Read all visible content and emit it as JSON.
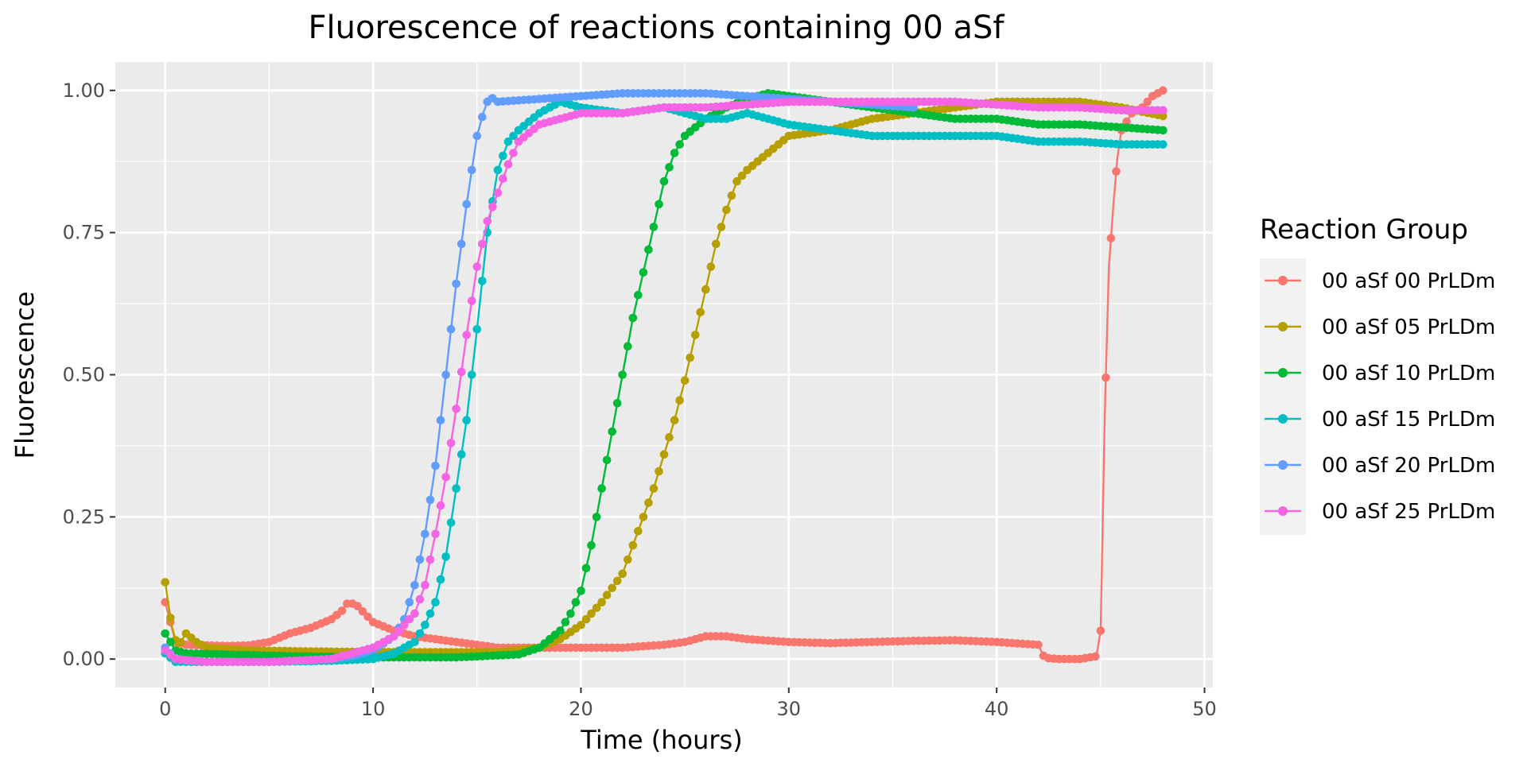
{
  "chart_data": {
    "type": "line",
    "title": "Fluorescence of reactions containing 00 aSf",
    "xlabel": "Time (hours)",
    "ylabel": "Fluorescence",
    "xlim": [
      -2.4,
      50.4
    ],
    "ylim": [
      -0.05,
      1.05
    ],
    "x_ticks": [
      0,
      10,
      20,
      30,
      40,
      50
    ],
    "x_tick_labels": [
      "0",
      "10",
      "20",
      "30",
      "40",
      "50"
    ],
    "y_ticks": [
      0,
      0.25,
      0.5,
      0.75,
      1.0
    ],
    "y_tick_labels": [
      "0.00",
      "0.25",
      "0.50",
      "0.75",
      "1.00"
    ],
    "grid": true,
    "legend": {
      "title": "Reaction Group",
      "position": "right"
    },
    "series": [
      {
        "name": "00 aSf 00 PrLDm",
        "color": "#F8766D",
        "points": [
          [
            0,
            0.1
          ],
          [
            0.5,
            0.03
          ],
          [
            1,
            0.025
          ],
          [
            2,
            0.024
          ],
          [
            3,
            0.023
          ],
          [
            4,
            0.024
          ],
          [
            5,
            0.03
          ],
          [
            6,
            0.045
          ],
          [
            7,
            0.055
          ],
          [
            8,
            0.07
          ],
          [
            8.5,
            0.085
          ],
          [
            8.8,
            0.1
          ],
          [
            9.2,
            0.095
          ],
          [
            10,
            0.065
          ],
          [
            11,
            0.05
          ],
          [
            12,
            0.04
          ],
          [
            13,
            0.035
          ],
          [
            14,
            0.03
          ],
          [
            15,
            0.025
          ],
          [
            16,
            0.02
          ],
          [
            18,
            0.02
          ],
          [
            20,
            0.02
          ],
          [
            22,
            0.02
          ],
          [
            24,
            0.025
          ],
          [
            25,
            0.03
          ],
          [
            26,
            0.04
          ],
          [
            27,
            0.04
          ],
          [
            28,
            0.035
          ],
          [
            30,
            0.03
          ],
          [
            32,
            0.028
          ],
          [
            34,
            0.03
          ],
          [
            36,
            0.032
          ],
          [
            38,
            0.033
          ],
          [
            40,
            0.03
          ],
          [
            42,
            0.025
          ],
          [
            42.3,
            0.002
          ],
          [
            43,
            0.0
          ],
          [
            44,
            0.0
          ],
          [
            44.8,
            0.005
          ],
          [
            45,
            0.05
          ],
          [
            45.2,
            0.43
          ],
          [
            45.4,
            0.69
          ],
          [
            45.6,
            0.79
          ],
          [
            45.8,
            0.88
          ],
          [
            46,
            0.93
          ],
          [
            46.5,
            0.96
          ],
          [
            47,
            0.97
          ],
          [
            47.5,
            0.99
          ],
          [
            48,
            1.0
          ]
        ]
      },
      {
        "name": "00 aSf 05 PrLDm",
        "color": "#B79F00",
        "points": [
          [
            0,
            0.135
          ],
          [
            0.3,
            0.06
          ],
          [
            0.6,
            0.02
          ],
          [
            1,
            0.045
          ],
          [
            1.5,
            0.03
          ],
          [
            2,
            0.02
          ],
          [
            4,
            0.015
          ],
          [
            8,
            0.013
          ],
          [
            12,
            0.012
          ],
          [
            16,
            0.012
          ],
          [
            18,
            0.02
          ],
          [
            19,
            0.035
          ],
          [
            20,
            0.06
          ],
          [
            21,
            0.1
          ],
          [
            22,
            0.15
          ],
          [
            22.5,
            0.2
          ],
          [
            23,
            0.25
          ],
          [
            23.5,
            0.3
          ],
          [
            24,
            0.36
          ],
          [
            24.5,
            0.42
          ],
          [
            25,
            0.49
          ],
          [
            25.5,
            0.57
          ],
          [
            26,
            0.65
          ],
          [
            26.5,
            0.73
          ],
          [
            27,
            0.79
          ],
          [
            27.5,
            0.84
          ],
          [
            28,
            0.86
          ],
          [
            29,
            0.89
          ],
          [
            30,
            0.92
          ],
          [
            32,
            0.93
          ],
          [
            34,
            0.95
          ],
          [
            36,
            0.96
          ],
          [
            38,
            0.97
          ],
          [
            40,
            0.98
          ],
          [
            42,
            0.98
          ],
          [
            44,
            0.98
          ],
          [
            46,
            0.97
          ],
          [
            48,
            0.955
          ]
        ]
      },
      {
        "name": "00 aSf 10 PrLDm",
        "color": "#00BA38",
        "points": [
          [
            0,
            0.045
          ],
          [
            0.5,
            0.015
          ],
          [
            1,
            0.01
          ],
          [
            3,
            0.008
          ],
          [
            6,
            0.005
          ],
          [
            10,
            0.003
          ],
          [
            14,
            0.003
          ],
          [
            17,
            0.008
          ],
          [
            18,
            0.02
          ],
          [
            19,
            0.05
          ],
          [
            19.5,
            0.08
          ],
          [
            20,
            0.12
          ],
          [
            20.5,
            0.2
          ],
          [
            21,
            0.3
          ],
          [
            21.5,
            0.4
          ],
          [
            22,
            0.5
          ],
          [
            22.5,
            0.6
          ],
          [
            23,
            0.68
          ],
          [
            23.5,
            0.76
          ],
          [
            24,
            0.84
          ],
          [
            24.5,
            0.89
          ],
          [
            25,
            0.92
          ],
          [
            26,
            0.95
          ],
          [
            27,
            0.97
          ],
          [
            28,
            0.985
          ],
          [
            29,
            0.995
          ],
          [
            30,
            0.99
          ],
          [
            32,
            0.98
          ],
          [
            34,
            0.97
          ],
          [
            36,
            0.96
          ],
          [
            38,
            0.95
          ],
          [
            40,
            0.95
          ],
          [
            42,
            0.94
          ],
          [
            44,
            0.94
          ],
          [
            46,
            0.935
          ],
          [
            48,
            0.93
          ]
        ]
      },
      {
        "name": "00 aSf 15 PrLDm",
        "color": "#00BFC4",
        "points": [
          [
            0,
            0.01
          ],
          [
            0.5,
            -0.005
          ],
          [
            2,
            -0.005
          ],
          [
            5,
            -0.005
          ],
          [
            8,
            -0.003
          ],
          [
            10,
            0.0
          ],
          [
            11,
            0.01
          ],
          [
            12,
            0.03
          ],
          [
            12.5,
            0.06
          ],
          [
            13,
            0.1
          ],
          [
            13.5,
            0.18
          ],
          [
            14,
            0.3
          ],
          [
            14.5,
            0.42
          ],
          [
            15,
            0.58
          ],
          [
            15.5,
            0.75
          ],
          [
            16,
            0.86
          ],
          [
            16.5,
            0.91
          ],
          [
            17,
            0.93
          ],
          [
            18,
            0.96
          ],
          [
            19,
            0.98
          ],
          [
            20,
            0.97
          ],
          [
            22,
            0.96
          ],
          [
            24,
            0.97
          ],
          [
            25,
            0.96
          ],
          [
            26,
            0.95
          ],
          [
            27,
            0.95
          ],
          [
            28,
            0.96
          ],
          [
            30,
            0.94
          ],
          [
            32,
            0.93
          ],
          [
            34,
            0.92
          ],
          [
            36,
            0.92
          ],
          [
            38,
            0.92
          ],
          [
            40,
            0.92
          ],
          [
            42,
            0.91
          ],
          [
            44,
            0.91
          ],
          [
            46,
            0.905
          ],
          [
            48,
            0.905
          ]
        ]
      },
      {
        "name": "00 aSf 20 PrLDm",
        "color": "#619CFF",
        "points": [
          [
            0,
            0.02
          ],
          [
            0.5,
            0.0
          ],
          [
            2,
            -0.005
          ],
          [
            5,
            -0.005
          ],
          [
            8,
            0.0
          ],
          [
            9,
            0.005
          ],
          [
            10,
            0.015
          ],
          [
            11,
            0.04
          ],
          [
            11.5,
            0.07
          ],
          [
            12,
            0.13
          ],
          [
            12.5,
            0.22
          ],
          [
            13,
            0.34
          ],
          [
            13.5,
            0.5
          ],
          [
            14,
            0.66
          ],
          [
            14.5,
            0.8
          ],
          [
            15,
            0.92
          ],
          [
            15.3,
            0.96
          ],
          [
            15.6,
            0.99
          ],
          [
            16,
            0.98
          ],
          [
            18,
            0.985
          ],
          [
            20,
            0.99
          ],
          [
            22,
            0.995
          ],
          [
            24,
            0.995
          ],
          [
            26,
            0.995
          ],
          [
            28,
            0.99
          ],
          [
            30,
            0.985
          ],
          [
            32,
            0.98
          ],
          [
            34,
            0.975
          ],
          [
            36,
            0.97
          ]
        ]
      },
      {
        "name": "00 aSf 25 PrLDm",
        "color": "#F564E3",
        "points": [
          [
            0,
            0.015
          ],
          [
            0.5,
            0.0
          ],
          [
            2,
            -0.005
          ],
          [
            5,
            -0.005
          ],
          [
            8,
            0.0
          ],
          [
            9,
            0.01
          ],
          [
            10,
            0.02
          ],
          [
            11,
            0.04
          ],
          [
            12,
            0.08
          ],
          [
            12.5,
            0.13
          ],
          [
            13,
            0.22
          ],
          [
            13.5,
            0.32
          ],
          [
            14,
            0.44
          ],
          [
            14.5,
            0.57
          ],
          [
            15,
            0.69
          ],
          [
            15.5,
            0.77
          ],
          [
            16,
            0.82
          ],
          [
            16.5,
            0.87
          ],
          [
            17,
            0.91
          ],
          [
            18,
            0.94
          ],
          [
            19,
            0.95
          ],
          [
            20,
            0.96
          ],
          [
            22,
            0.96
          ],
          [
            24,
            0.97
          ],
          [
            26,
            0.97
          ],
          [
            28,
            0.975
          ],
          [
            30,
            0.98
          ],
          [
            32,
            0.98
          ],
          [
            34,
            0.98
          ],
          [
            36,
            0.98
          ],
          [
            38,
            0.98
          ],
          [
            40,
            0.975
          ],
          [
            42,
            0.97
          ],
          [
            44,
            0.97
          ],
          [
            46,
            0.965
          ],
          [
            48,
            0.965
          ]
        ]
      }
    ]
  }
}
